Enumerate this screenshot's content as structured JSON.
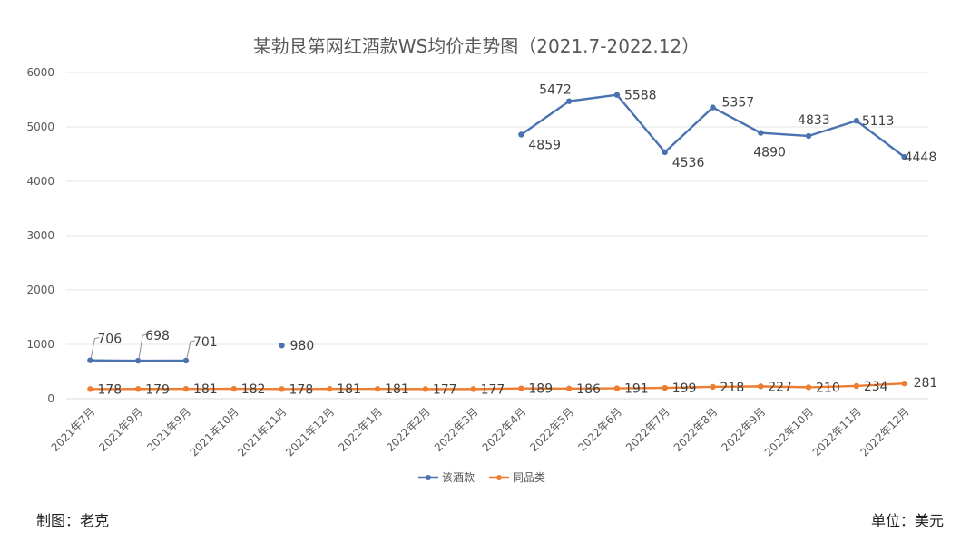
{
  "chart_data": {
    "type": "line",
    "title": "某勃艮第网红酒款WS均价走势图（2021.7-2022.12）",
    "categories": [
      "2021年7月",
      "2021年9月",
      "2021年9月",
      "2021年10月",
      "2021年11月",
      "2021年12月",
      "2022年1月",
      "2022年2月",
      "2022年3月",
      "2022年4月",
      "2022年5月",
      "2022年6月",
      "2022年7月",
      "2022年8月",
      "2022年9月",
      "2022年10月",
      "2022年11月",
      "2022年12月"
    ],
    "ylim": [
      0,
      6000
    ],
    "yticks": [
      "0",
      "1000",
      "2000",
      "3000",
      "4000",
      "5000",
      "6000"
    ],
    "grid": true,
    "legend_position": "bottom",
    "series": [
      {
        "name": "该酒款",
        "color": "#4A72B0",
        "values": [
          706,
          698,
          701,
          null,
          980,
          null,
          null,
          null,
          null,
          4859,
          5472,
          5588,
          4536,
          5357,
          4890,
          4833,
          5113,
          4448
        ]
      },
      {
        "name": "同品类",
        "color": "#ED7D31",
        "values": [
          178,
          179,
          181,
          182,
          178,
          181,
          181,
          177,
          177,
          189,
          186,
          191,
          199,
          218,
          227,
          210,
          234,
          281
        ]
      }
    ]
  },
  "footer": {
    "left": "制图：老克",
    "right": "单位：美元"
  }
}
